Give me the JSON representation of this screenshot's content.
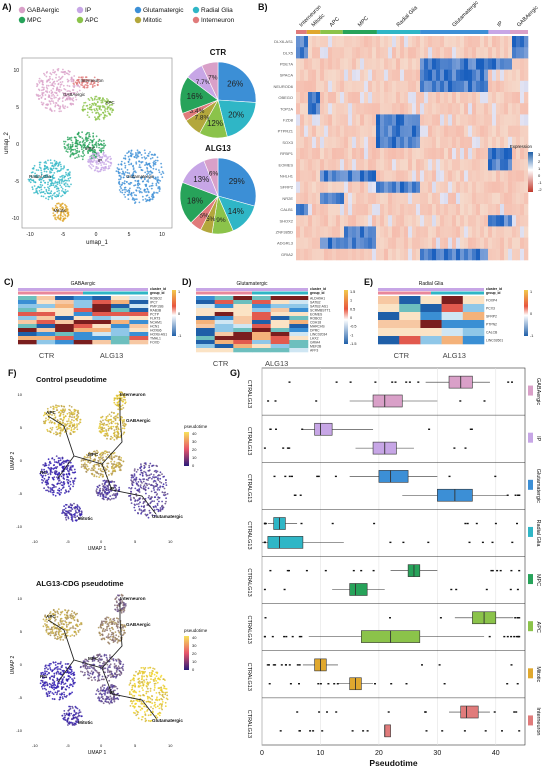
{
  "panels": {
    "A": "A)",
    "B": "B)",
    "C": "C)",
    "D": "D)",
    "E": "E)",
    "F": "F)",
    "G": "G)"
  },
  "legend": [
    {
      "label": "GABAergic",
      "color": "#d9a0c8"
    },
    {
      "label": "IP",
      "color": "#c7a6e6"
    },
    {
      "label": "Glutamatergic",
      "color": "#3c8fd6"
    },
    {
      "label": "Radial Glia",
      "color": "#2fb6c6"
    },
    {
      "label": "MPC",
      "color": "#27a35a"
    },
    {
      "label": "APC",
      "color": "#8bc34a"
    },
    {
      "label": "Mitotic",
      "color": "#b3a73c"
    },
    {
      "label": "Interneuron",
      "color": "#e07b7b"
    }
  ],
  "umap_a": {
    "ylabel": "umap_2",
    "xlabel": "umap_1",
    "xticks": [
      "-10",
      "-5",
      "0",
      "5",
      "10"
    ],
    "yticks": [
      "10",
      "5",
      "0",
      "-5",
      "-10"
    ],
    "labels": [
      "Interneuron",
      "GABAergic",
      "APC",
      "MPC",
      "Radial Glia",
      "IP",
      "Glutamatergic",
      "Mitotic"
    ]
  },
  "pies": [
    {
      "title": "CTR",
      "slices": [
        {
          "label": "26%",
          "value": 26,
          "color": "#3c8fd6"
        },
        {
          "label": "20%",
          "value": 20,
          "color": "#2fb6c6"
        },
        {
          "label": "12%",
          "value": 12,
          "color": "#8bc34a"
        },
        {
          "label": "7.8%",
          "value": 7.8,
          "color": "#b3a73c"
        },
        {
          "label": "3.4%",
          "value": 3.4,
          "color": "#e07b7b"
        },
        {
          "label": "16%",
          "value": 16,
          "color": "#27a35a"
        },
        {
          "label": "7.7%",
          "value": 7.7,
          "color": "#c7a6e6"
        },
        {
          "label": "7%",
          "value": 7,
          "color": "#d9a0c8"
        }
      ]
    },
    {
      "title": "ALG13",
      "slices": [
        {
          "label": "29%",
          "value": 29,
          "color": "#3c8fd6"
        },
        {
          "label": "14%",
          "value": 14,
          "color": "#2fb6c6"
        },
        {
          "label": "9%",
          "value": 9,
          "color": "#8bc34a"
        },
        {
          "label": "5%",
          "value": 5,
          "color": "#b3a73c"
        },
        {
          "label": "5%",
          "value": 5,
          "color": "#e07b7b"
        },
        {
          "label": "18%",
          "value": 18,
          "color": "#27a35a"
        },
        {
          "label": "13%",
          "value": 13,
          "color": "#c7a6e6"
        },
        {
          "label": "6%",
          "value": 6,
          "color": "#d9a0c8"
        }
      ]
    }
  ],
  "heatmap_b": {
    "groups": [
      "Interneuron",
      "Mitotic",
      "APC",
      "MPC",
      "Radial Glia",
      "Glutamatergic",
      "IP",
      "GABAergic"
    ],
    "genes": [
      "DLX6-AS1",
      "DLX5",
      "PDE7A",
      "SPACA",
      "NEUROD6",
      "OBEGO",
      "TOP2A",
      "FZD8",
      "PTPRZ1",
      "SOX3",
      "RFBP1",
      "EOMES",
      "NHLH1",
      "SFRP2",
      "NR2E",
      "CALB1",
      "SHOX2",
      "ZNF385D",
      "ADGRL3",
      "GRIA2"
    ],
    "legend_title": "Expression",
    "legend_ticks": [
      "3",
      "2",
      "1",
      "0",
      "-1",
      "-2"
    ]
  },
  "heat_c": {
    "title": "GABAergic",
    "genes": [
      "ROBO2",
      "IPC7",
      "PMF1SB",
      "RAB3B",
      "PCTP",
      "FLRT3",
      "NCAM1",
      "HCN1",
      "HOXB6",
      "HOXB-AS1",
      "TMAL1",
      "FOXD"
    ],
    "ticks": [
      "1",
      "0",
      "-1"
    ],
    "xlabels": [
      "CTR",
      "ALG13"
    ]
  },
  "heat_d": {
    "title": "Glutamatergic",
    "genes": [
      "ALDH9A1",
      "SATB2",
      "SATB2-AS1",
      "SCRMBSTT1",
      "EOMES",
      "ROBO2",
      "CDH18",
      "MARCHS",
      "DPRC",
      "LINC02034",
      "LHX2",
      "GRIA4",
      "MEF2B",
      "AFF3"
    ],
    "ticks": [
      "1.5",
      "1",
      "0.5",
      "0",
      "-0.5",
      "-1",
      "-1.5"
    ],
    "xlabels": [
      "CTR",
      "ALG13"
    ]
  },
  "heat_e": {
    "title": "Radial Glia",
    "genes": [
      "FOXP4",
      "PCX3",
      "SFRP2",
      "PTPN2",
      "CALCB",
      "LINC02601"
    ],
    "ticks": [
      "1",
      "0",
      "-1"
    ],
    "xlabels": [
      "CTR",
      "ALG13"
    ]
  },
  "heat_keys": {
    "cluster": "cluster_id",
    "group": "group_id"
  },
  "pseudo_f": {
    "ctrl_title": "Control pseudotime",
    "alg_title": "ALG13-CDG pseudotime",
    "legend_title": "pseudotime",
    "legend_ticks": [
      "40",
      "30",
      "20",
      "10",
      "0"
    ],
    "xlabel": "UMAP 1",
    "ylabel": "UMAP 2",
    "xticks": [
      "-10",
      "-5",
      "0",
      "5",
      "10"
    ],
    "yticks": [
      "10",
      "5",
      "0",
      "-5",
      "-10"
    ],
    "labels": [
      "Interneuron",
      "APC",
      "GABAergic",
      "RG",
      "MPC",
      "IP",
      "Mitotic",
      "Glutamatergic"
    ]
  },
  "chart_data": {
    "type": "box",
    "xlabel": "Pseudotime",
    "xlim": [
      0,
      45
    ],
    "xticks": [
      0,
      10,
      20,
      30,
      40
    ],
    "groups": [
      {
        "name": "GABAergic",
        "color": "#d9a0c8",
        "rows": [
          {
            "condition": "CTR",
            "q1": 32,
            "median": 34,
            "q3": 36,
            "wmin": 28,
            "wmax": 39
          },
          {
            "condition": "ALG13",
            "q1": 19,
            "median": 21,
            "q3": 24,
            "wmin": 15,
            "wmax": 30
          }
        ]
      },
      {
        "name": "IP",
        "color": "#c7a6e6",
        "rows": [
          {
            "condition": "CTR",
            "q1": 9,
            "median": 10,
            "q3": 12,
            "wmin": 7,
            "wmax": 19
          },
          {
            "condition": "ALG13",
            "q1": 19,
            "median": 21,
            "q3": 23,
            "wmin": 16,
            "wmax": 26
          }
        ]
      },
      {
        "name": "Glutamatergic",
        "color": "#3c8fd6",
        "rows": [
          {
            "condition": "CTR",
            "q1": 20,
            "median": 22,
            "q3": 25,
            "wmin": 15,
            "wmax": 30
          },
          {
            "condition": "ALG13",
            "q1": 30,
            "median": 33,
            "q3": 36,
            "wmin": 24,
            "wmax": 42
          }
        ]
      },
      {
        "name": "Radial Glia",
        "color": "#2fb6c6",
        "rows": [
          {
            "condition": "CTR",
            "q1": 2,
            "median": 3,
            "q3": 4,
            "wmin": 1,
            "wmax": 6
          },
          {
            "condition": "ALG13",
            "q1": 1,
            "median": 3,
            "q3": 7,
            "wmin": 0,
            "wmax": 14
          }
        ]
      },
      {
        "name": "MPC",
        "color": "#27a35a",
        "rows": [
          {
            "condition": "CTR",
            "q1": 25,
            "median": 26,
            "q3": 27,
            "wmin": 22,
            "wmax": 30
          },
          {
            "condition": "ALG13",
            "q1": 15,
            "median": 16,
            "q3": 18,
            "wmin": 12,
            "wmax": 21
          }
        ]
      },
      {
        "name": "APC",
        "color": "#8bc34a",
        "rows": [
          {
            "condition": "CTR",
            "q1": 36,
            "median": 38,
            "q3": 40,
            "wmin": 33,
            "wmax": 43
          },
          {
            "condition": "ALG13",
            "q1": 17,
            "median": 22,
            "q3": 27,
            "wmin": 8,
            "wmax": 38
          }
        ]
      },
      {
        "name": "Mitotic",
        "color": "#e0a82e",
        "rows": [
          {
            "condition": "CTR",
            "q1": 9,
            "median": 10,
            "q3": 11,
            "wmin": 7,
            "wmax": 13
          },
          {
            "condition": "ALG13",
            "q1": 15,
            "median": 16,
            "q3": 17,
            "wmin": 13,
            "wmax": 19
          }
        ]
      },
      {
        "name": "Interneuron",
        "color": "#e07b7b",
        "rows": [
          {
            "condition": "CTR",
            "q1": 34,
            "median": 35,
            "q3": 37,
            "wmin": 32,
            "wmax": 39
          },
          {
            "condition": "ALG13",
            "q1": 21,
            "median": 21,
            "q3": 22,
            "wmin": 21,
            "wmax": 22
          }
        ]
      }
    ]
  }
}
